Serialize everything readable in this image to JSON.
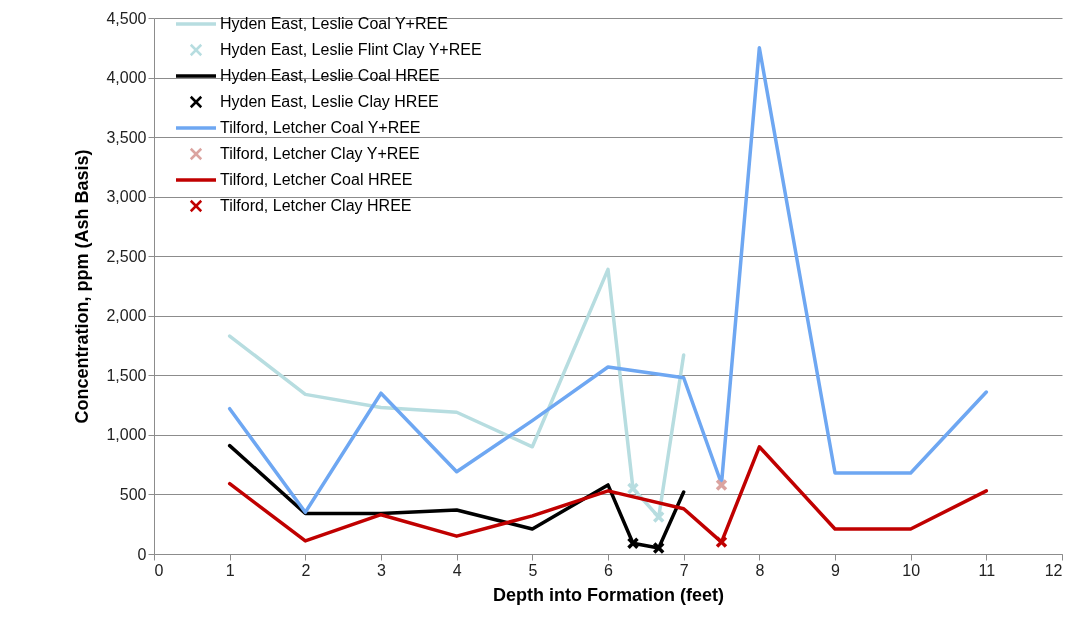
{
  "chart_data": {
    "type": "line",
    "xlabel": "Depth into Formation (feet)",
    "ylabel": "Concentration, ppm (Ash Basis)",
    "xlim": [
      0,
      12
    ],
    "xticks": [
      0,
      1,
      2,
      3,
      4,
      5,
      6,
      7,
      8,
      9,
      10,
      11,
      12
    ],
    "ylim": [
      0,
      4500
    ],
    "yticks": [
      0,
      500,
      {
        "value": 1000,
        "label": "1,000"
      },
      {
        "value": 1500,
        "label": "1,500"
      },
      {
        "value": 2000,
        "label": "2,000"
      },
      {
        "value": 2500,
        "label": "2,500"
      },
      {
        "value": 3000,
        "label": "3,000"
      },
      {
        "value": 3500,
        "label": "3,500"
      },
      {
        "value": 4000,
        "label": "4,000"
      },
      {
        "value": 4500,
        "label": "4,500"
      }
    ],
    "grid": "y",
    "legend": "top left",
    "series": [
      {
        "name": "Hyden East, Leslie Coal Y+REE",
        "type": "line",
        "color": "#b7dde0",
        "x": [
          1,
          2,
          3,
          4,
          5,
          6,
          6.33,
          6.67,
          7
        ],
        "values": [
          1830,
          1340,
          1230,
          1190,
          900,
          2390,
          550,
          310,
          1670
        ]
      },
      {
        "name": "Hyden East, Leslie Flint Clay Y+REE",
        "type": "scatter",
        "marker": "cross",
        "color": "#b7dde0",
        "x": [
          6.33,
          6.67
        ],
        "values": [
          550,
          310
        ]
      },
      {
        "name": "Hyden East, Leslie Coal HREE",
        "type": "line",
        "color": "#000000",
        "x": [
          1,
          2,
          3,
          4,
          5,
          6,
          6.33,
          6.67,
          7
        ],
        "values": [
          910,
          340,
          340,
          370,
          210,
          580,
          90,
          50,
          520
        ]
      },
      {
        "name": "Hyden East, Leslie  Clay HREE",
        "type": "scatter",
        "marker": "cross",
        "color": "#000000",
        "x": [
          6.33,
          6.67
        ],
        "values": [
          90,
          50
        ]
      },
      {
        "name": "Tilford, Letcher Coal Y+REE",
        "type": "line",
        "color": "#6ea7f2",
        "x": [
          1,
          2,
          3,
          4,
          5,
          6,
          7,
          7.5,
          8,
          9,
          10,
          11
        ],
        "values": [
          1220,
          350,
          1350,
          690,
          1120,
          1570,
          1480,
          590,
          4250,
          680,
          680,
          1360
        ]
      },
      {
        "name": "Tilford, Letcher Clay Y+REE",
        "type": "scatter",
        "marker": "cross",
        "color": "#dba4a0",
        "x": [
          7.5
        ],
        "values": [
          580
        ]
      },
      {
        "name": "Tilford, Letcher Coal HREE",
        "type": "line",
        "color": "#c00000",
        "x": [
          1,
          2,
          3,
          4,
          5,
          6,
          7,
          7.5,
          8,
          9,
          10,
          11
        ],
        "values": [
          590,
          110,
          330,
          150,
          320,
          530,
          380,
          100,
          900,
          210,
          210,
          530
        ]
      },
      {
        "name": "Tilford, Letcher Clay HREE",
        "type": "scatter",
        "marker": "cross",
        "color": "#c00000",
        "x": [
          7.5
        ],
        "values": [
          100
        ]
      }
    ]
  }
}
